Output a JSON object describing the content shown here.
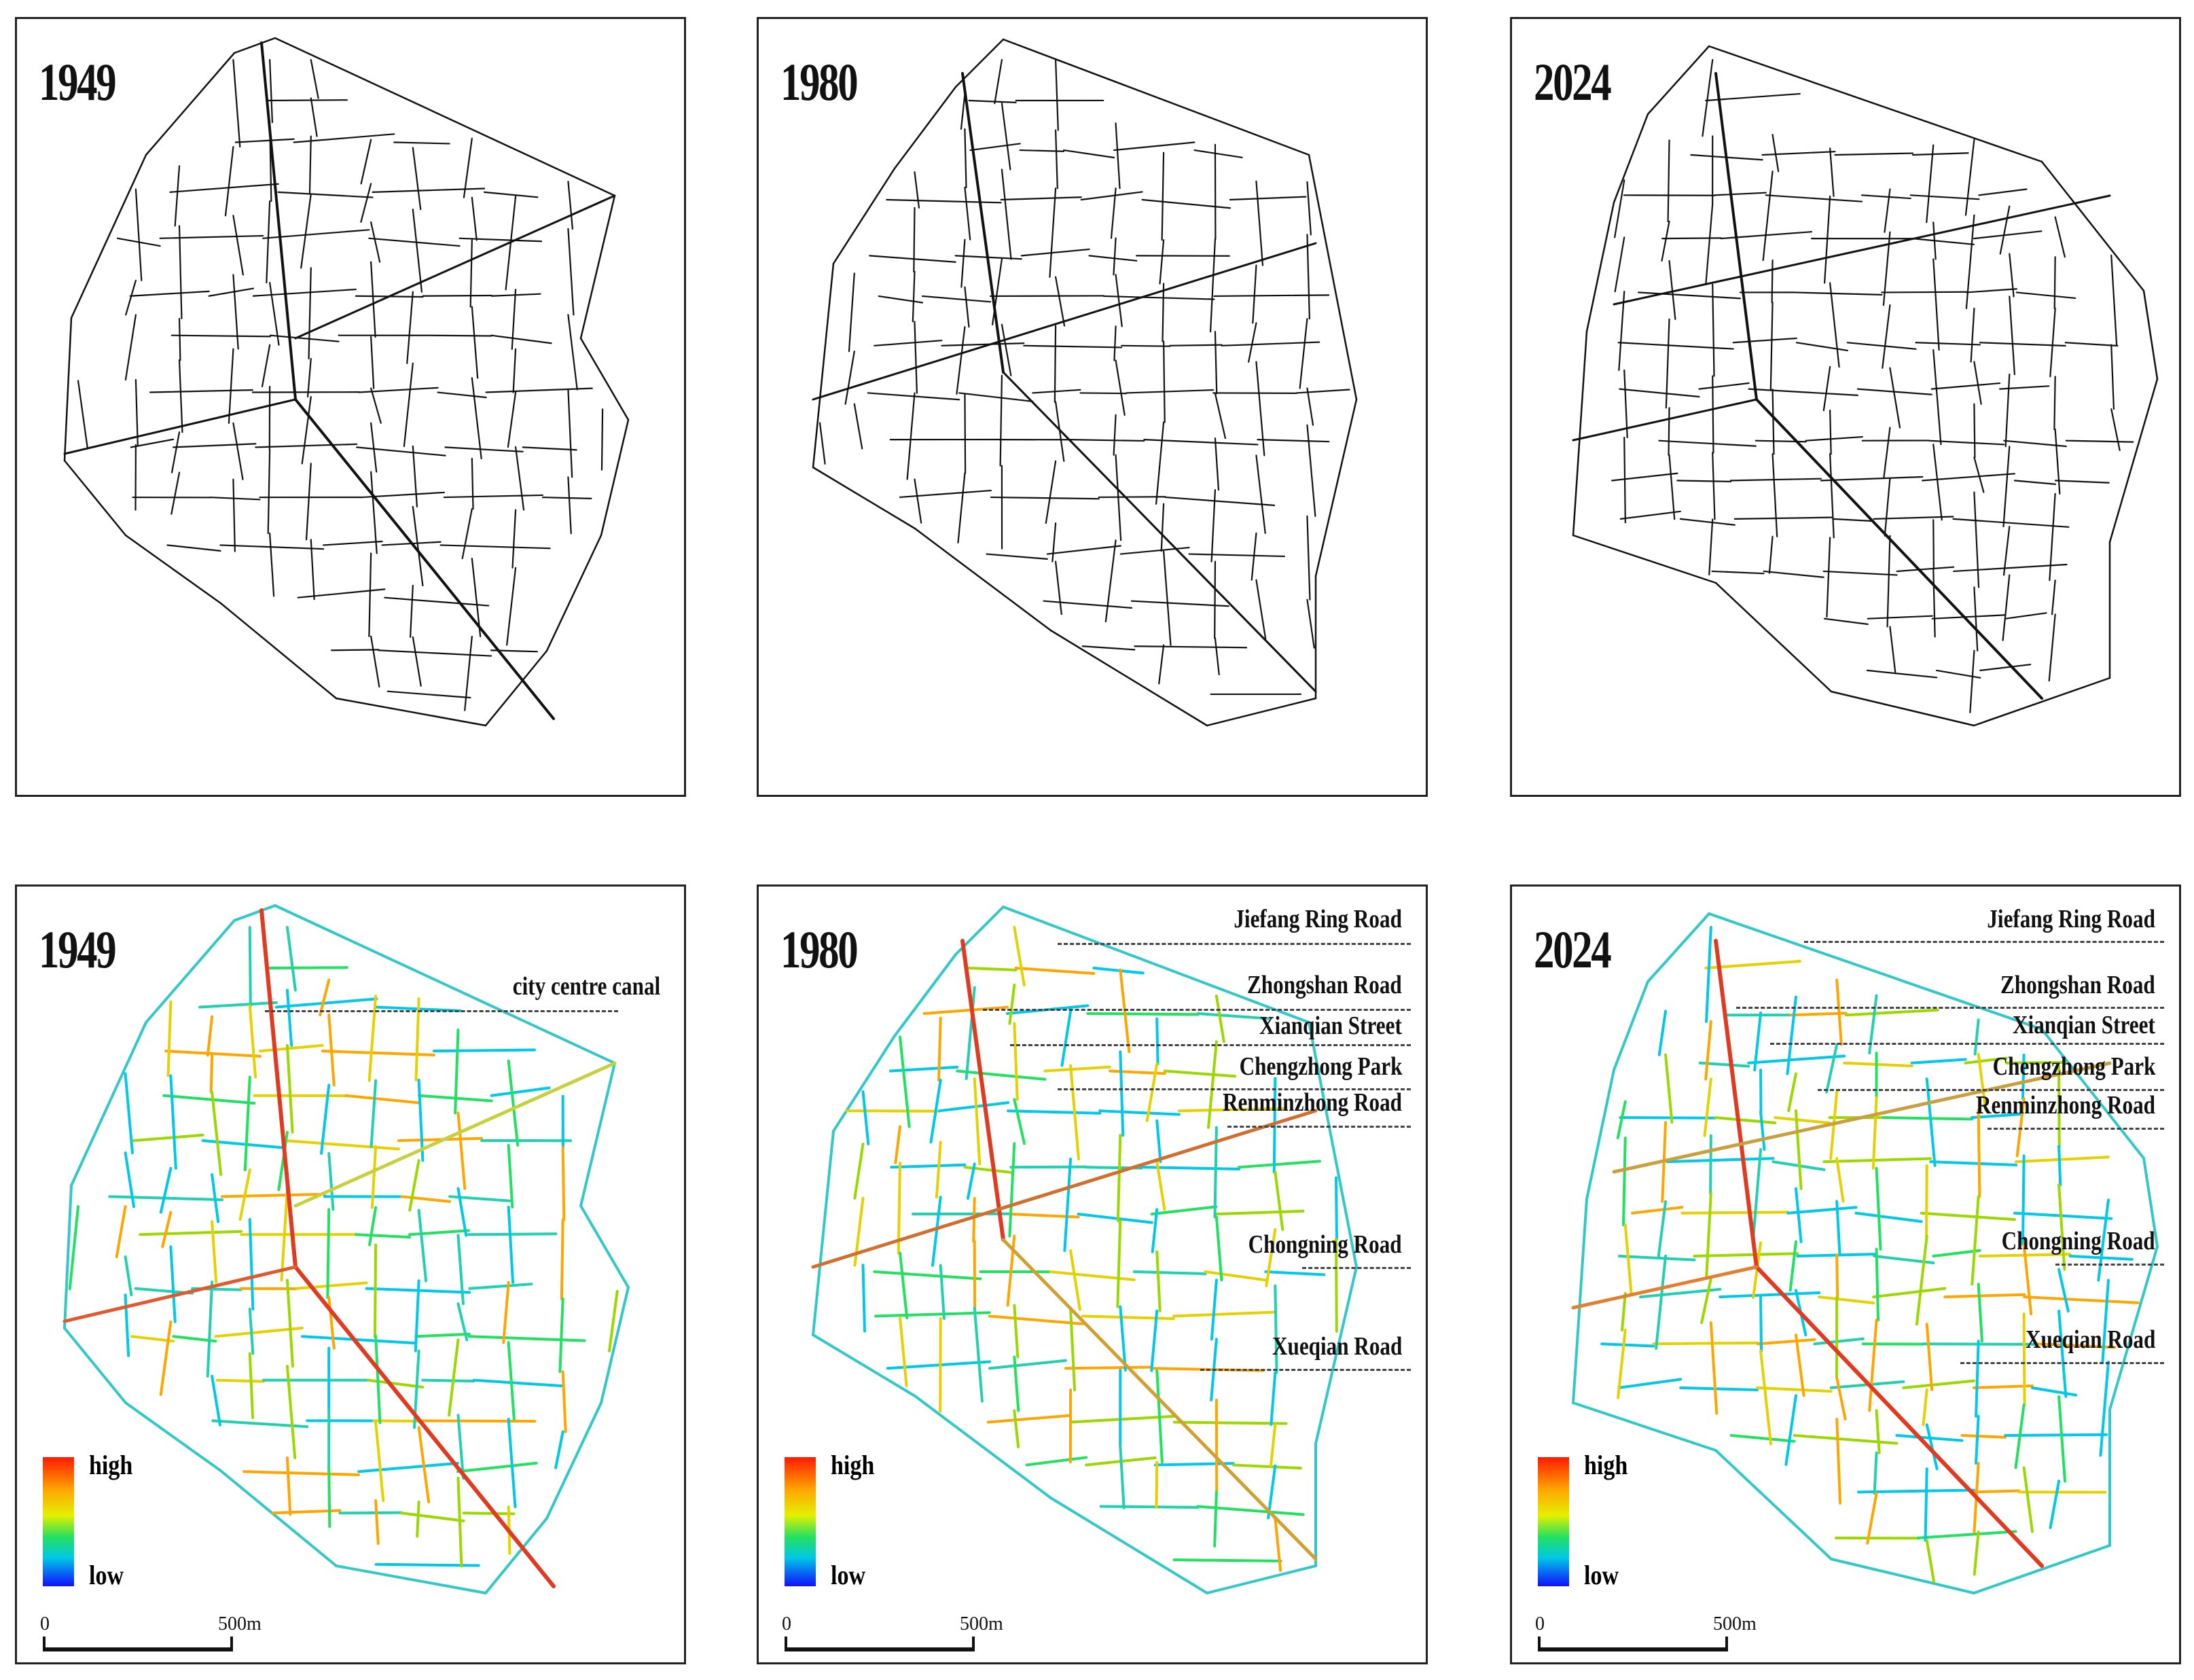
{
  "panels": [
    {
      "id": "p1949-top",
      "year": "1949",
      "style": "plain"
    },
    {
      "id": "p1980-top",
      "year": "1980",
      "style": "plain"
    },
    {
      "id": "p2024-top",
      "year": "2024",
      "style": "plain"
    },
    {
      "id": "p1949-bot",
      "year": "1949",
      "style": "color"
    },
    {
      "id": "p1980-bot",
      "year": "1980",
      "style": "color"
    },
    {
      "id": "p2024-bot",
      "year": "2024",
      "style": "color"
    }
  ],
  "labels_1949": [
    "city centre canal"
  ],
  "labels_roads": [
    "Jiefang Ring Road",
    "Zhongshan Road",
    "Xianqian Street",
    "Chengzhong Park",
    "Renminzhong Road",
    "Chongning Road",
    "Xueqian Road"
  ],
  "legend": {
    "high": "high",
    "low": "low"
  },
  "scale": {
    "zero": "0",
    "end": "500m"
  },
  "colors": {
    "high": "#ff1a00",
    "mid_high": "#ffa500",
    "mid": "#e5f000",
    "mid_low": "#22e060",
    "low_mid": "#00c8e6",
    "low": "#1010ff",
    "lines": "#111111"
  }
}
